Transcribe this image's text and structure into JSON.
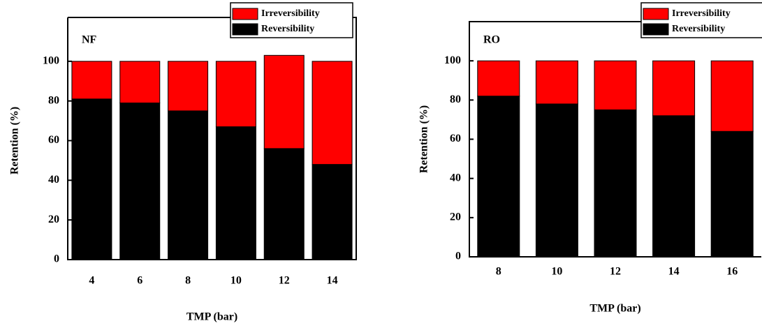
{
  "chart_data": [
    {
      "type": "bar",
      "stacked": true,
      "title": "NF",
      "categories": [
        "4",
        "6",
        "8",
        "10",
        "12",
        "14"
      ],
      "series": [
        {
          "name": "Reversibility",
          "color": "#000000",
          "values": [
            81,
            79,
            75,
            67,
            56,
            48
          ]
        },
        {
          "name": "Irreversibility",
          "color": "#ff0000",
          "values": [
            19,
            21,
            25,
            33,
            47,
            52
          ]
        }
      ],
      "ylim": [
        0,
        120
      ],
      "yticks": [
        0,
        20,
        40,
        60,
        80,
        100
      ],
      "x_label": "TMP (bar)",
      "y_label": "Retention (%)"
    },
    {
      "type": "bar",
      "stacked": true,
      "title": "RO",
      "categories": [
        "8",
        "10",
        "12",
        "14",
        "16"
      ],
      "series": [
        {
          "name": "Reversibility",
          "color": "#000000",
          "values": [
            82,
            78,
            75,
            72,
            64
          ]
        },
        {
          "name": "Irreversibility",
          "color": "#ff0000",
          "values": [
            18,
            22,
            25,
            28,
            36
          ]
        }
      ],
      "ylim": [
        0,
        120
      ],
      "yticks": [
        0,
        20,
        40,
        60,
        80,
        100
      ],
      "x_label": "TMP (bar)",
      "y_label": "Retention (%)"
    }
  ]
}
